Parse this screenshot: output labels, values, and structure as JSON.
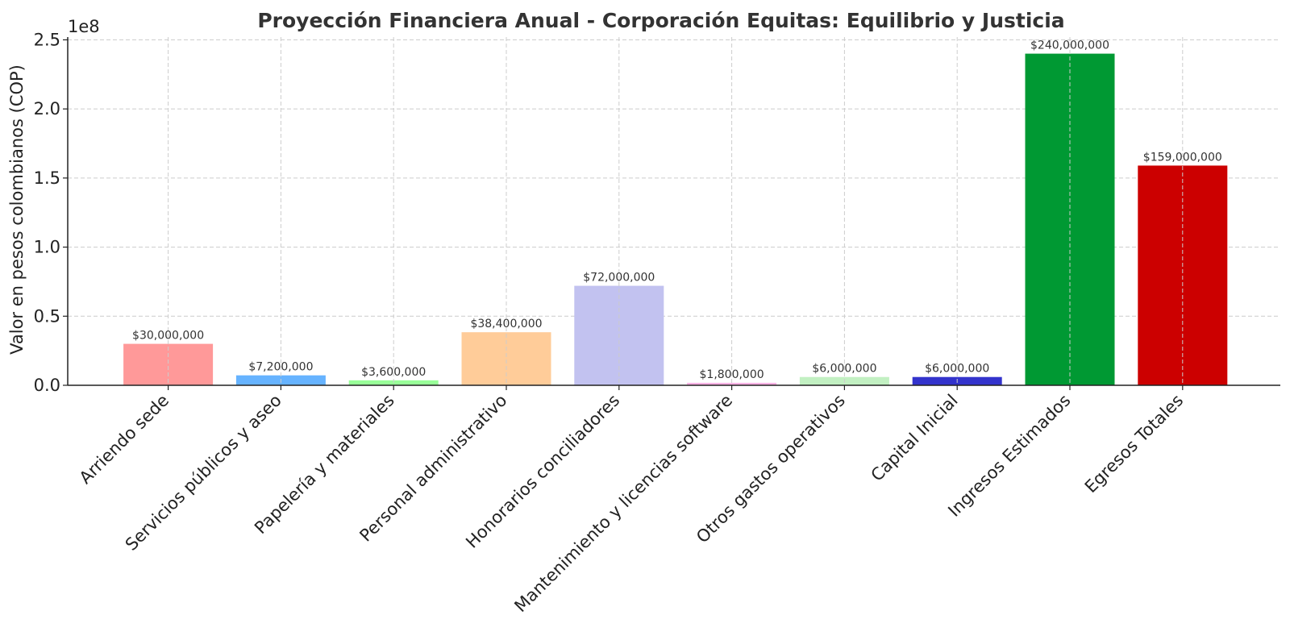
{
  "chart_data": {
    "type": "bar",
    "title": "Proyección Financiera Anual - Corporación Equitas: Equilibrio y Justicia",
    "xlabel": "",
    "ylabel": "Valor en pesos colombianos (COP)",
    "y_offset_label": "1e8",
    "ylim": [
      0,
      252000000
    ],
    "yticks": [
      0,
      50000000,
      100000000,
      150000000,
      200000000,
      250000000
    ],
    "ytick_labels": [
      "0.0",
      "0.5",
      "1.0",
      "1.5",
      "2.0",
      "2.5"
    ],
    "grid": true,
    "categories": [
      "Arriendo sede",
      "Servicios públicos y aseo",
      "Papelería y materiales",
      "Personal administrativo",
      "Honorarios conciliadores",
      "Mantenimiento y licencias software",
      "Otros gastos operativos",
      "Capital Inicial",
      "Ingresos Estimados",
      "Egresos Totales"
    ],
    "values": [
      30000000,
      7200000,
      3600000,
      38400000,
      72000000,
      1800000,
      6000000,
      6000000,
      240000000,
      159000000
    ],
    "data_labels": [
      "$30,000,000",
      "$7,200,000",
      "$3,600,000",
      "$38,400,000",
      "$72,000,000",
      "$1,800,000",
      "$6,000,000",
      "$6,000,000",
      "$240,000,000",
      "$159,000,000"
    ],
    "colors": [
      "#ff9999",
      "#66b3ff",
      "#99ff99",
      "#ffcc99",
      "#c2c2f0",
      "#ffb3e6",
      "#c2f0c2",
      "#3333cc",
      "#009933",
      "#cc0000"
    ]
  }
}
